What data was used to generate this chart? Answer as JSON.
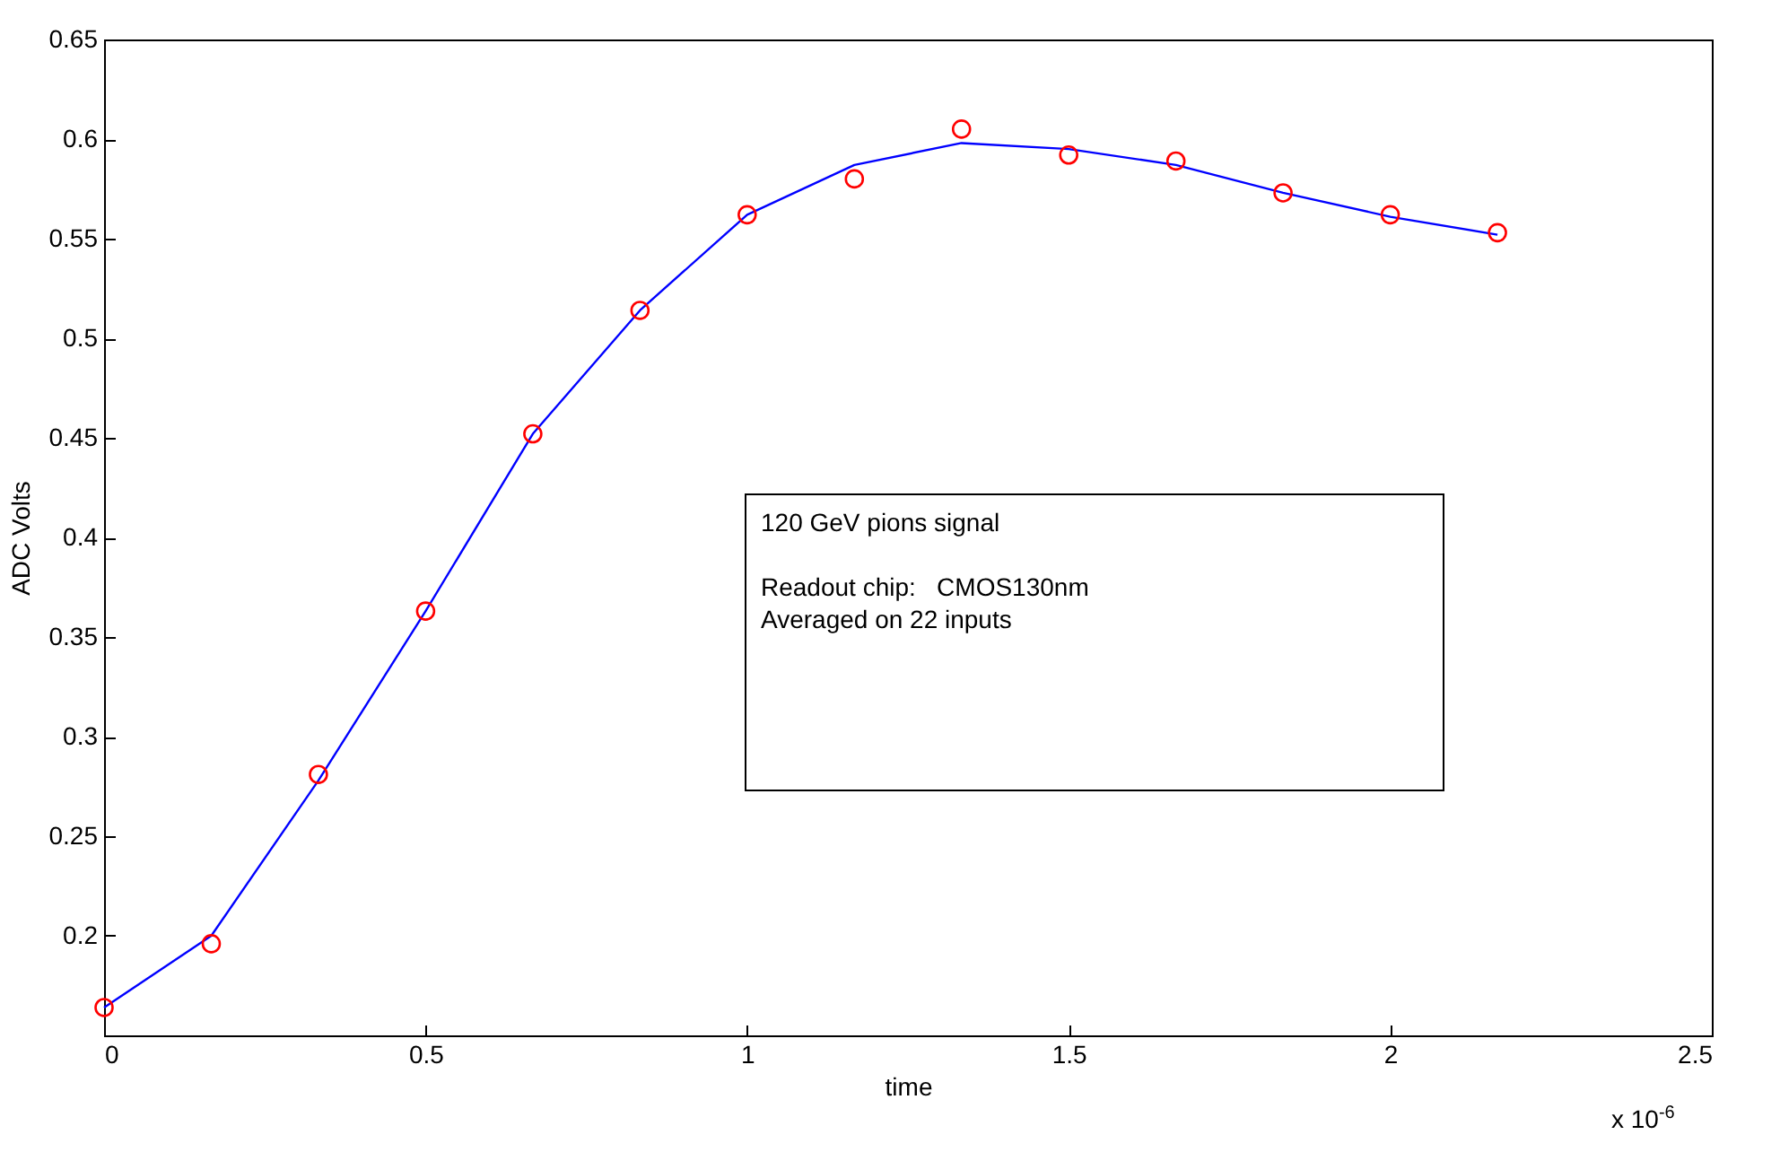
{
  "chart_data": {
    "type": "line",
    "xlabel": "time",
    "ylabel": "ADC Volts",
    "annotations": [
      "120 GeV pions signal",
      "Readout chip:   CMOS130nm",
      "Averaged on 22 inputs",
      "x 10$^{-6}$"
    ],
    "xlim": [
      0,
      2.5
    ],
    "xticks": [
      0,
      0.5,
      1,
      1.5,
      2,
      2.5
    ],
    "ylim": [
      0.15,
      0.65
    ],
    "yticks": [
      0.2,
      0.25,
      0.3,
      0.35,
      0.4,
      0.45,
      0.5,
      0.55,
      0.6,
      0.65
    ],
    "grid": false,
    "series": [
      {
        "color": "#0000ff",
        "marker": "none",
        "line_style": "solid",
        "x": [
          0,
          0.1667,
          0.3333,
          0.5,
          0.6667,
          0.8333,
          1.0,
          1.1667,
          1.3333,
          1.5,
          1.6667,
          1.8333,
          2.0,
          2.1667
        ],
        "values": [
          0.164,
          0.2,
          0.278,
          0.363,
          0.452,
          0.514,
          0.562,
          0.587,
          0.598,
          0.595,
          0.587,
          0.573,
          0.561,
          0.552
        ]
      },
      {
        "type": "scatter",
        "color": "#ff0000",
        "marker": "circle",
        "x": [
          0,
          0.1667,
          0.3333,
          0.5,
          0.6667,
          0.8333,
          1.0,
          1.1667,
          1.3333,
          1.5,
          1.6667,
          1.8333,
          2.0,
          2.1667
        ],
        "values": [
          0.164,
          0.196,
          0.281,
          0.363,
          0.452,
          0.514,
          0.562,
          0.58,
          0.605,
          0.592,
          0.589,
          0.573,
          0.562,
          0.553
        ]
      }
    ]
  }
}
